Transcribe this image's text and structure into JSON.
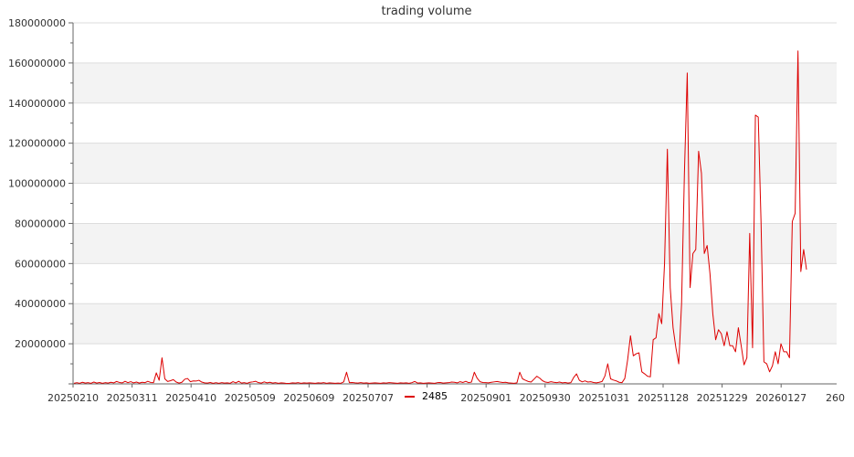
{
  "chart_data": {
    "type": "line",
    "title": "trading volume",
    "xlabel": "",
    "ylabel": "",
    "ylim": [
      0,
      180000000
    ],
    "y_ticks": [
      "20000000",
      "40000000",
      "60000000",
      "80000000",
      "100000000",
      "120000000",
      "140000000",
      "160000000",
      "180000000"
    ],
    "x_tick_labels": [
      "20250210",
      "20250311",
      "20250410",
      "20250509",
      "20250609",
      "20250707",
      "",
      "20250901",
      "20250930",
      "20251031",
      "20251128",
      "20251229",
      "20260127",
      "260"
    ],
    "grid": "horizontal bands",
    "legend_position": "bottom-center",
    "series": [
      {
        "name": "2485",
        "color": "#dd0000",
        "values": [
          300000,
          600000,
          300000,
          800000,
          400000,
          600000,
          300000,
          900000,
          400000,
          700000,
          300000,
          600000,
          400000,
          800000,
          500000,
          1200000,
          700000,
          500000,
          1300000,
          600000,
          1100000,
          500000,
          900000,
          400000,
          800000,
          600000,
          1300000,
          700000,
          600000,
          5500000,
          1800000,
          13000000,
          2500000,
          1200000,
          1600000,
          2100000,
          900000,
          400000,
          800000,
          2300000,
          2700000,
          1100000,
          1500000,
          1400000,
          1800000,
          900000,
          500000,
          400000,
          700000,
          300000,
          600000,
          300000,
          600000,
          400000,
          500000,
          300000,
          1100000,
          500000,
          1300000,
          400000,
          600000,
          300000,
          800000,
          1000000,
          1300000,
          600000,
          400000,
          1000000,
          500000,
          800000,
          400000,
          600000,
          300000,
          500000,
          400000,
          200000,
          300000,
          500000,
          400000,
          600000,
          300000,
          500000,
          400000,
          500000,
          400000,
          300000,
          500000,
          400000,
          600000,
          300000,
          500000,
          400000,
          300000,
          400000,
          300000,
          1000000,
          5800000,
          600000,
          700000,
          500000,
          400000,
          600000,
          400000,
          500000,
          300000,
          400000,
          500000,
          400000,
          300000,
          500000,
          400000,
          600000,
          500000,
          400000,
          300000,
          500000,
          400000,
          500000,
          300000,
          600000,
          1200000,
          400000,
          500000,
          300000,
          400000,
          500000,
          400000,
          300000,
          600000,
          700000,
          400000,
          500000,
          600000,
          900000,
          800000,
          500000,
          1100000,
          700000,
          1300000,
          600000,
          900000,
          5800000,
          2800000,
          1100000,
          700000,
          600000,
          500000,
          800000,
          1000000,
          1200000,
          900000,
          700000,
          800000,
          500000,
          400000,
          300000,
          500000,
          5800000,
          2500000,
          1800000,
          1200000,
          900000,
          2300000,
          3800000,
          2900000,
          1600000,
          900000,
          700000,
          1100000,
          800000,
          600000,
          900000,
          500000,
          700000,
          400000,
          600000,
          3200000,
          5000000,
          1800000,
          1000000,
          1500000,
          900000,
          1100000,
          700000,
          500000,
          800000,
          1200000,
          3900000,
          10000000,
          2500000,
          1900000,
          1500000,
          800000,
          600000,
          2700000,
          12000000,
          24000000,
          14000000,
          15000000,
          15500000,
          6000000,
          5000000,
          3800000,
          3500000,
          22000000,
          23000000,
          35000000,
          30000000,
          60000000,
          117000000,
          48000000,
          28000000,
          18000000,
          10000000,
          40000000,
          105000000,
          155000000,
          48000000,
          65000000,
          67000000,
          116000000,
          105000000,
          65000000,
          69000000,
          55000000,
          35000000,
          22000000,
          27000000,
          25000000,
          19000000,
          26000000,
          19000000,
          19000000,
          16000000,
          28000000,
          19000000,
          9500000,
          13000000,
          75000000,
          18000000,
          134000000,
          133000000,
          80000000,
          11000000,
          10000000,
          6000000,
          9000000,
          16000000,
          10000000,
          20000000,
          16000000,
          16000000,
          13000000,
          81000000,
          85000000,
          166000000,
          56000000,
          67000000,
          57000000
        ]
      }
    ]
  }
}
